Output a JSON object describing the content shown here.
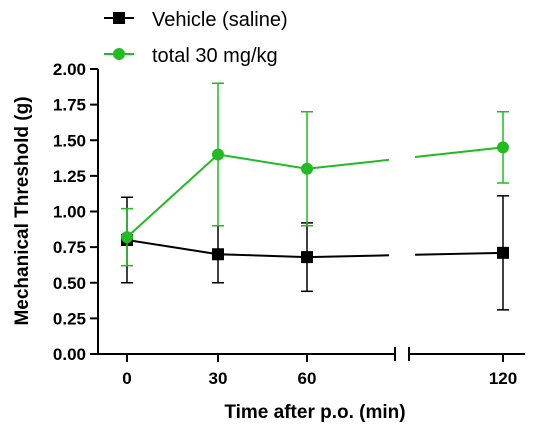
{
  "chart_data": {
    "type": "line",
    "xlabel": "Time after p.o. (min)",
    "ylabel": "Mechanical Threshold (g)",
    "x_ticks": [
      "0",
      "30",
      "60",
      "120"
    ],
    "x_break": "between 60 and 120",
    "ylim": [
      0,
      2.0
    ],
    "y_ticks": [
      "0.00",
      "0.25",
      "0.50",
      "0.75",
      "1.00",
      "1.25",
      "1.50",
      "1.75",
      "2.00"
    ],
    "grid": false,
    "legend_position": "top-left",
    "series": [
      {
        "name": "Vehicle (saline)",
        "color": "#000000",
        "marker": "square",
        "x": [
          0,
          30,
          60,
          120
        ],
        "y": [
          0.8,
          0.7,
          0.68,
          0.71
        ],
        "err_low": [
          0.5,
          0.5,
          0.44,
          0.31
        ],
        "err_high": [
          1.1,
          0.9,
          0.92,
          1.11
        ]
      },
      {
        "name": "total 30 mg/kg",
        "color": "#22bb22",
        "marker": "circle",
        "x": [
          0,
          30,
          60,
          120
        ],
        "y": [
          0.82,
          1.4,
          1.3,
          1.45
        ],
        "err_low": [
          0.62,
          0.9,
          0.9,
          1.2
        ],
        "err_high": [
          1.02,
          1.9,
          1.7,
          1.7
        ]
      }
    ]
  }
}
